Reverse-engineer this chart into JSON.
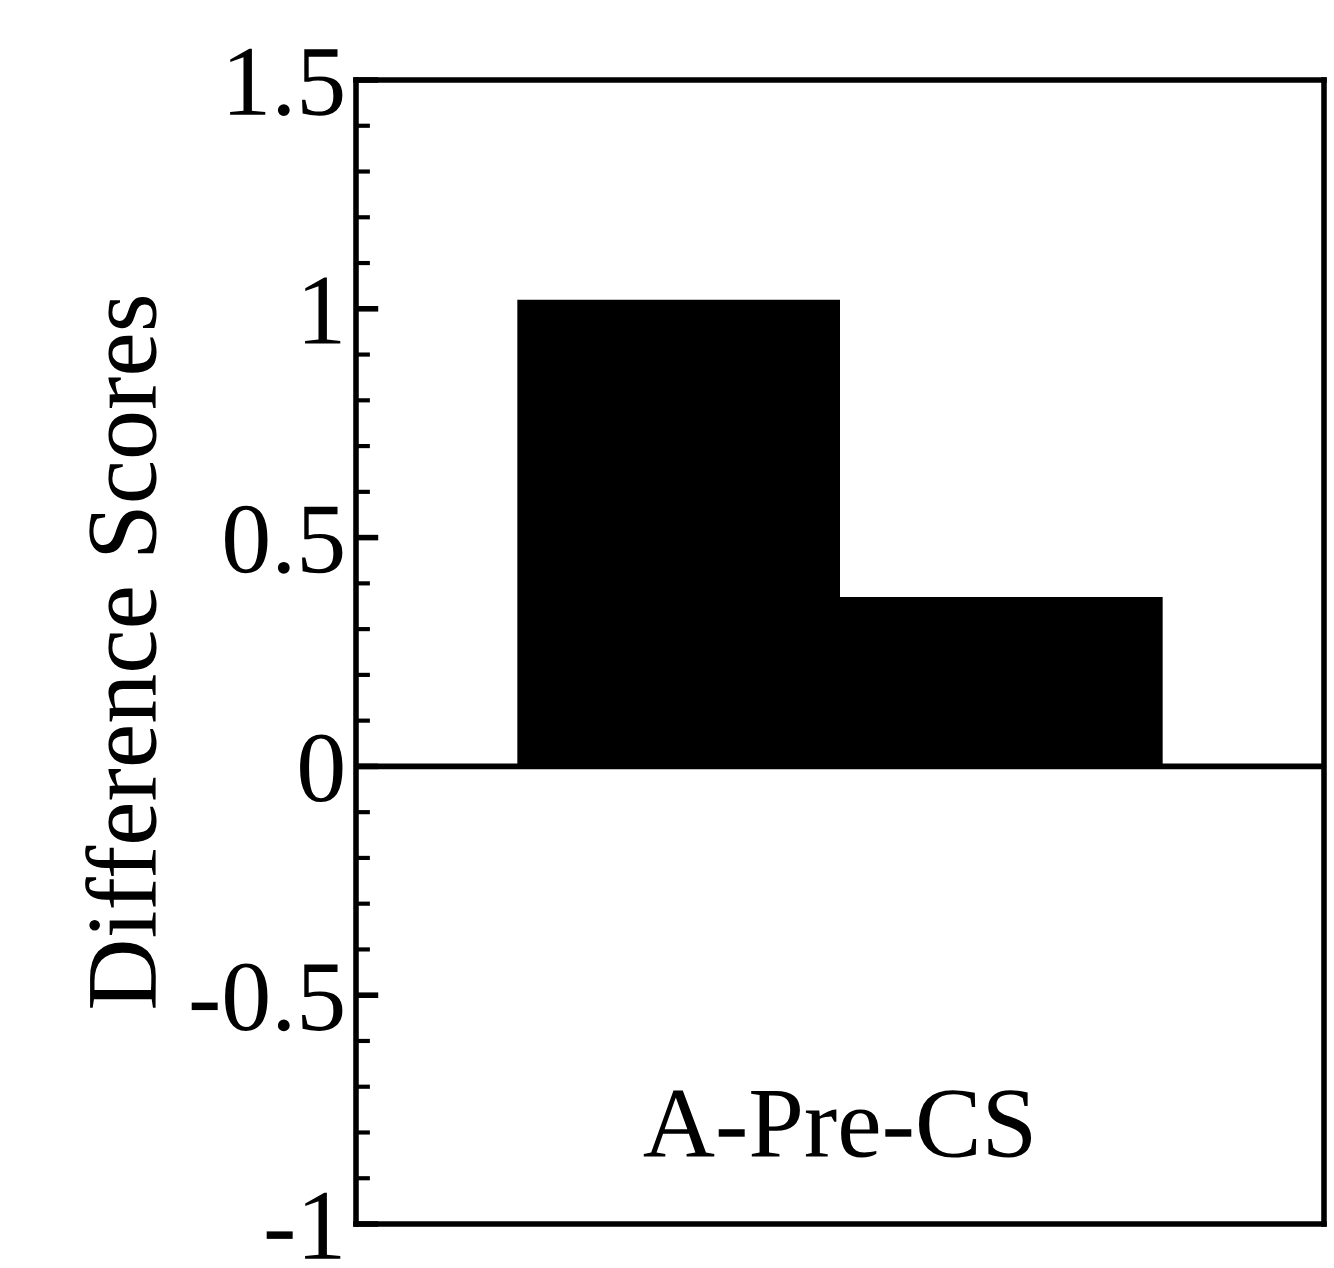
{
  "chart_data": {
    "type": "bar",
    "ylabel": "Difference Scores",
    "categories": [
      null,
      null
    ],
    "values": [
      1.02,
      0.37
    ],
    "color": "#000000",
    "ylim": [
      -1,
      1.5
    ],
    "yticks": [
      -1,
      -0.5,
      0,
      0.5,
      1,
      1.5
    ],
    "ref_lines": [
      {
        "axis": "y",
        "value": 0,
        "color": "#000000"
      }
    ],
    "annotations": [
      "A-Pre-CS"
    ],
    "grid": false,
    "legend": false
  }
}
